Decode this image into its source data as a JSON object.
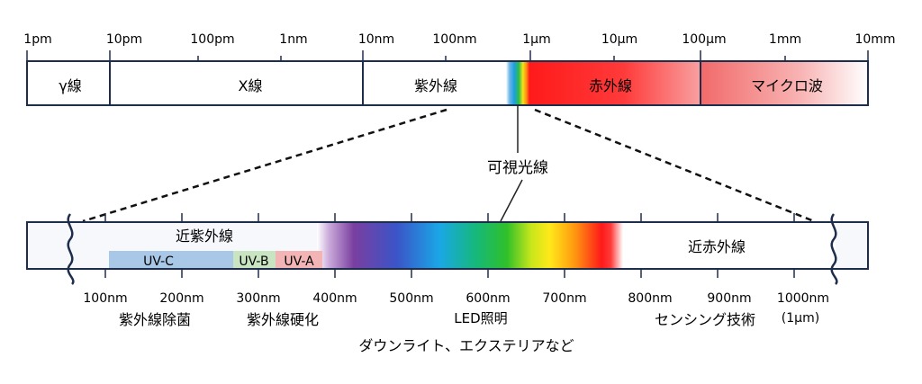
{
  "top_scale": {
    "ticks": [
      "1pm",
      "10pm",
      "100pm",
      "1nm",
      "10nm",
      "100nm",
      "1μm",
      "10μm",
      "100μm",
      "1mm",
      "10mm"
    ],
    "bands": {
      "gamma": "γ線",
      "xray": "X線",
      "uv": "紫外線",
      "ir": "赤外線",
      "microwave": "マイクロ波"
    }
  },
  "visible_light_label": "可視光線",
  "bottom_scale": {
    "ticks": [
      "100nm",
      "200nm",
      "300nm",
      "400nm",
      "500nm",
      "600nm",
      "700nm",
      "800nm",
      "900nm",
      "1000nm"
    ],
    "tick_sub": "(1μm)",
    "near_uv": "近紫外線",
    "near_ir": "近赤外線",
    "uvc": "UV-C",
    "uvb": "UV-B",
    "uva": "UV-A"
  },
  "applications": {
    "uv_sterilization": "紫外線除菌",
    "uv_curing": "紫外線硬化",
    "led_lighting": "LED照明",
    "downlight": "ダウンライト、エクステリアなど",
    "sensing": "センシング技術"
  },
  "colors": {
    "frame": "#1f2d4d",
    "uvc": "#a9c7e6",
    "uvb": "#c8e4c0",
    "uva": "#f2b4b4",
    "ir": "#ff1a1a"
  }
}
